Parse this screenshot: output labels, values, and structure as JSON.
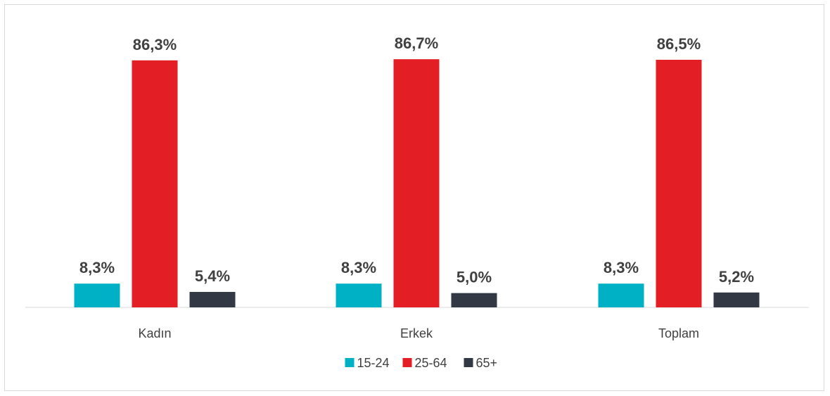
{
  "chart_data": {
    "type": "bar",
    "categories": [
      "Kadın",
      "Erkek",
      "Toplam"
    ],
    "series": [
      {
        "name": "15-24",
        "color": "#00b0c4",
        "values": [
          8.3,
          8.3,
          8.3
        ],
        "labels": [
          "8,3%",
          "8,3%",
          "8,3%"
        ]
      },
      {
        "name": "25-64",
        "color": "#e31e24",
        "values": [
          86.3,
          86.7,
          86.5
        ],
        "labels": [
          "86,3%",
          "86,7%",
          "86,5%"
        ]
      },
      {
        "name": "65+",
        "color": "#323844",
        "values": [
          5.4,
          5.0,
          5.2
        ],
        "labels": [
          "5,4%",
          "5,0%",
          "5,2%"
        ]
      }
    ],
    "ylim": [
      0,
      100
    ],
    "grid": false,
    "legend": "bottom",
    "title": "",
    "xlabel": "",
    "ylabel": ""
  }
}
